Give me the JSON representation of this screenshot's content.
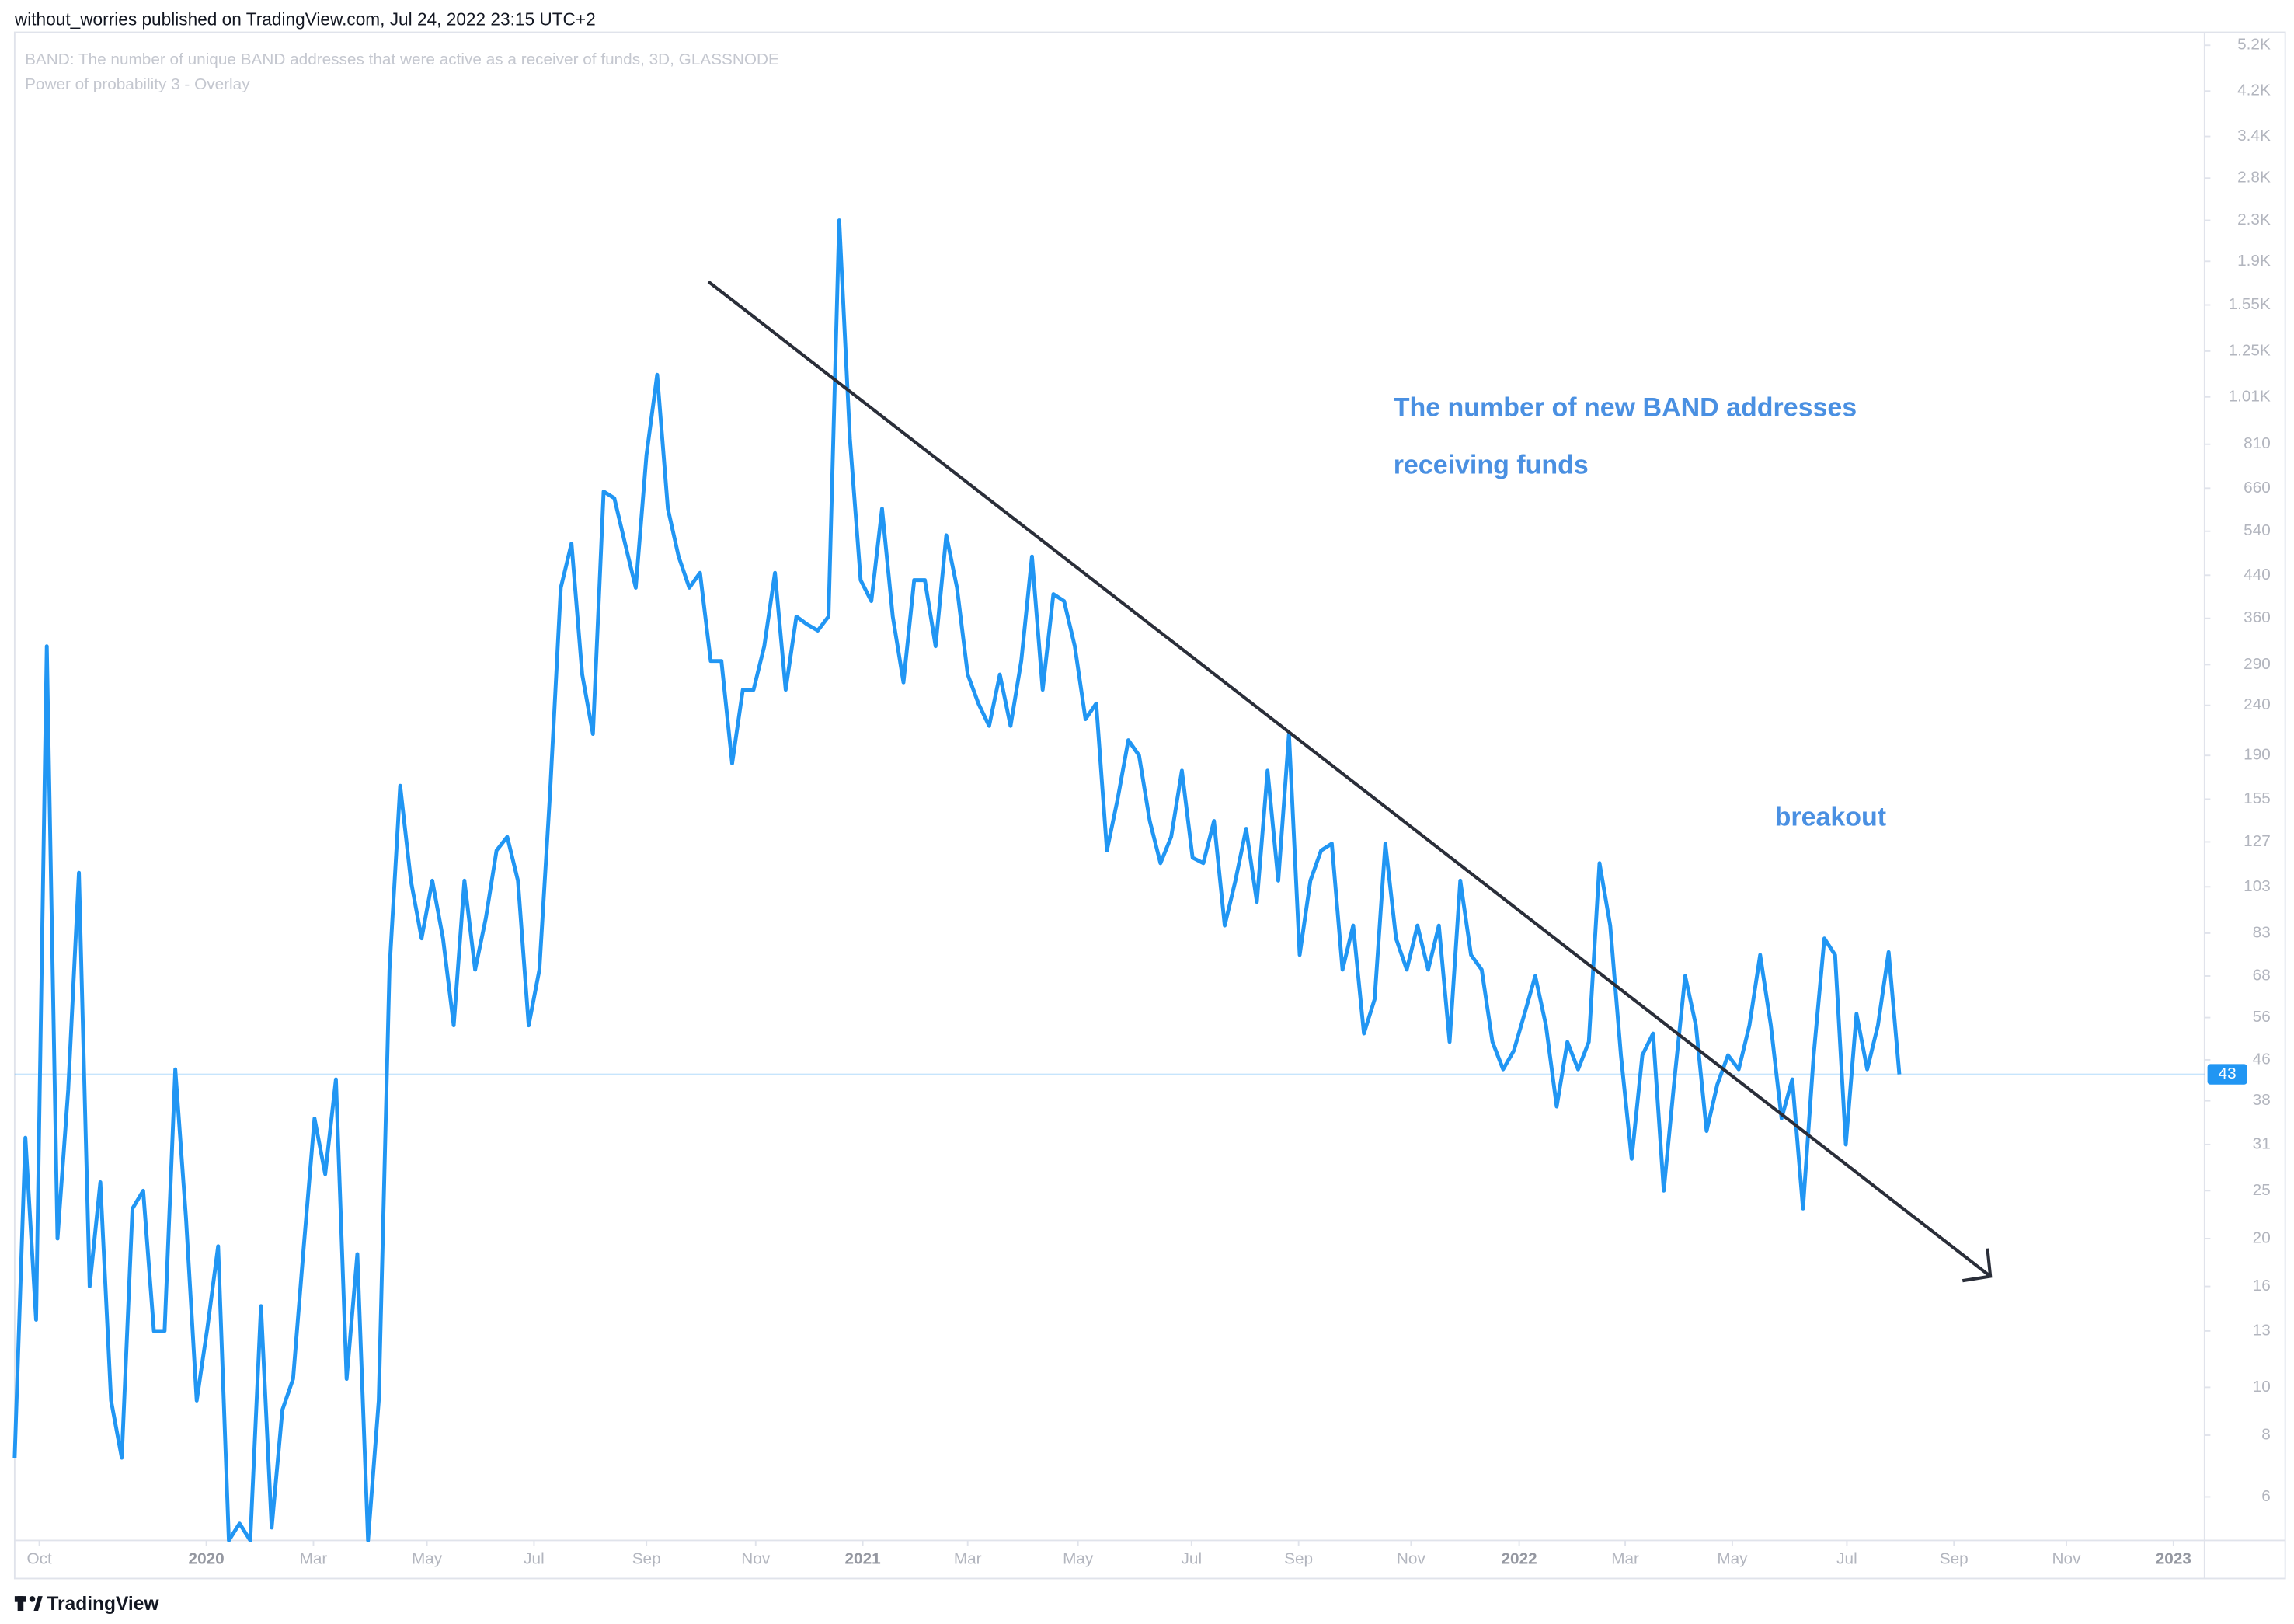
{
  "header": "without_worries published on TradingView.com, Jul 24, 2022 23:15 UTC+2",
  "brand": "TradingView",
  "chart_data": {
    "type": "line",
    "subtitle": "Power of probability 3 - Overlay",
    "annotations": [
      "The number of new BAND addresses",
      "receiving funds",
      "breakout"
    ],
    "log_scale": true,
    "grid": false,
    "series": [
      {
        "name": "BAND: The number of unique BAND addresses that were active as a receiver of funds, 3D, GLASSNODE",
        "color": "#2196f3",
        "values": [
          7.2,
          32,
          13.7,
          316,
          20,
          40,
          110,
          16,
          26,
          9.4,
          7.2,
          23,
          25,
          13,
          13,
          44,
          22,
          9.4,
          13.2,
          19.3,
          4.9,
          5.3,
          4.9,
          14.6,
          5.2,
          9,
          10.4,
          19.3,
          35,
          27,
          42,
          10.4,
          18.6,
          4.9,
          9.4,
          70,
          165,
          106,
          81,
          106,
          81,
          54,
          106,
          70,
          89,
          122,
          130,
          106,
          54,
          70,
          160,
          415,
          510,
          277,
          210,
          650,
          630,
          510,
          415,
          770,
          1120,
          600,
          480,
          415,
          445,
          295,
          295,
          183,
          258,
          258,
          316,
          445,
          258,
          363,
          350,
          340,
          363,
          2300,
          830,
          430,
          390,
          600,
          363,
          267,
          430,
          430,
          316,
          530,
          415,
          277,
          242,
          218,
          277,
          218,
          295,
          480,
          258,
          403,
          390,
          316,
          225,
          242,
          122,
          155,
          204,
          190,
          140,
          115,
          130,
          177,
          118,
          115,
          140,
          86,
          106,
          135,
          96,
          177,
          106,
          210,
          75,
          106,
          122,
          126,
          70,
          86,
          52,
          61,
          126,
          81,
          70,
          86,
          70,
          86,
          50,
          106,
          75,
          70,
          50,
          44,
          48,
          57,
          68,
          54,
          37,
          50,
          44,
          50,
          115,
          86,
          47,
          29,
          47,
          52,
          25,
          42,
          68,
          54,
          33,
          41,
          47,
          44,
          54,
          75,
          54,
          35,
          42,
          23,
          47,
          81,
          75,
          31,
          57,
          44,
          54,
          76,
          43
        ]
      }
    ],
    "xlim": [
      0,
      204.5
    ],
    "xticks": [
      {
        "value": 2.3,
        "label": "Oct"
      },
      {
        "value": 17.9,
        "label": "2020"
      },
      {
        "value": 27.9,
        "label": "Mar"
      },
      {
        "value": 38.5,
        "label": "May"
      },
      {
        "value": 48.5,
        "label": "Jul"
      },
      {
        "value": 59.0,
        "label": "Sep"
      },
      {
        "value": 69.2,
        "label": "Nov"
      },
      {
        "value": 79.2,
        "label": "2021"
      },
      {
        "value": 89.0,
        "label": "Mar"
      },
      {
        "value": 99.3,
        "label": "May"
      },
      {
        "value": 109.9,
        "label": "Jul"
      },
      {
        "value": 119.9,
        "label": "Sep"
      },
      {
        "value": 130.4,
        "label": "Nov"
      },
      {
        "value": 140.5,
        "label": "2022"
      },
      {
        "value": 150.4,
        "label": "Mar"
      },
      {
        "value": 160.4,
        "label": "May"
      },
      {
        "value": 171.1,
        "label": "Jul"
      },
      {
        "value": 181.1,
        "label": "Sep"
      },
      {
        "value": 191.6,
        "label": "Nov"
      },
      {
        "value": 201.6,
        "label": "2023"
      }
    ],
    "ylim": [
      4.9,
      5600
    ],
    "yticks": [
      {
        "value": 5200,
        "label": "5.2K"
      },
      {
        "value": 4200,
        "label": "4.2K"
      },
      {
        "value": 3400,
        "label": "3.4K"
      },
      {
        "value": 2800,
        "label": "2.8K"
      },
      {
        "value": 2300,
        "label": "2.3K"
      },
      {
        "value": 1900,
        "label": "1.9K"
      },
      {
        "value": 1550,
        "label": "1.55K"
      },
      {
        "value": 1250,
        "label": "1.25K"
      },
      {
        "value": 1010,
        "label": "1.01K"
      },
      810,
      660,
      540,
      440,
      360,
      290,
      240,
      190,
      155,
      127,
      103,
      83,
      68,
      56,
      46,
      38,
      31,
      25,
      20,
      16,
      13,
      10,
      8,
      6
    ]
  }
}
